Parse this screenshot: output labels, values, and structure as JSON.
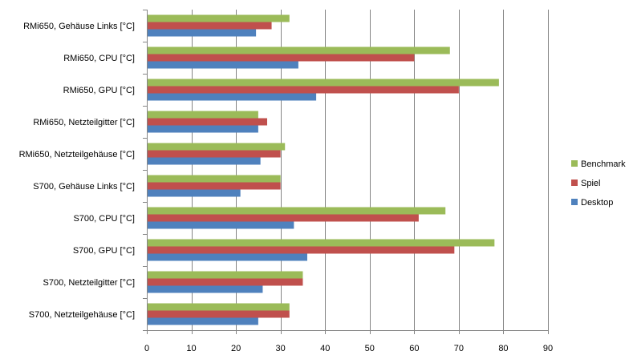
{
  "chart_data": {
    "type": "bar",
    "orientation": "horizontal",
    "title": "",
    "xlabel": "",
    "ylabel": "",
    "categories": [
      "RMi650, Gehäuse  Links [°C]",
      "RMi650, CPU [°C]",
      "RMi650, GPU [°C]",
      "RMi650, Netzteilgitter  [°C]",
      "RMi650, Netzteilgehäuse  [°C]",
      "S700, Gehäuse Links [°C]",
      "S700, CPU [°C]",
      "S700, GPU [°C]",
      "S700, Netzteilgitter [°C]",
      "S700, Netzteilgehäuse  [°C]"
    ],
    "series": [
      {
        "name": "Benchmark",
        "color": "#9bbb59",
        "values": [
          32,
          68,
          79,
          25,
          31,
          30,
          67,
          78,
          35,
          32
        ]
      },
      {
        "name": "Spiel",
        "color": "#c0504d",
        "values": [
          28,
          60,
          70,
          27,
          30,
          30,
          61,
          69,
          35,
          32
        ]
      },
      {
        "name": "Desktop",
        "color": "#4f81bd",
        "values": [
          24.5,
          34,
          38,
          25,
          25.5,
          21,
          33,
          36,
          26,
          25
        ]
      }
    ],
    "xlim": [
      0,
      90
    ],
    "xticks": [
      0,
      10,
      20,
      30,
      40,
      50,
      60,
      70,
      80,
      90
    ],
    "grid": "vertical",
    "legend_position": "right"
  }
}
